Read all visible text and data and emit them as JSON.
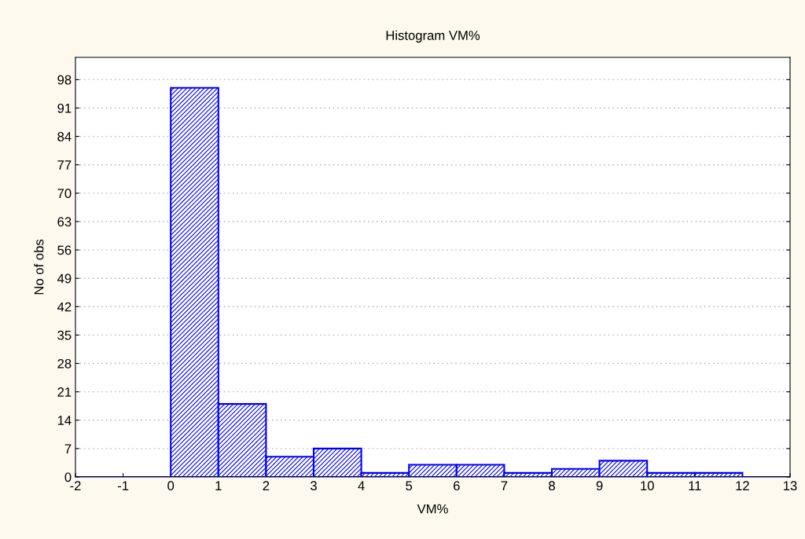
{
  "chart_data": {
    "type": "histogram",
    "title": "Histogram VM%",
    "xlabel": "VM%",
    "ylabel": "No of obs",
    "bins": [
      -2,
      -1,
      0,
      1,
      2,
      3,
      4,
      5,
      6,
      7,
      8,
      9,
      10,
      11,
      12,
      13
    ],
    "values": [
      0,
      0,
      96,
      18,
      5,
      7,
      1,
      3,
      3,
      1,
      2,
      4,
      1,
      1,
      0
    ],
    "color": "#0000ff",
    "xlim": [
      -2,
      13
    ],
    "xticks": [
      -2,
      -1,
      0,
      1,
      2,
      3,
      4,
      5,
      6,
      7,
      8,
      9,
      10,
      11,
      12,
      13
    ],
    "ylim": [
      0,
      103.5
    ],
    "yticks": [
      0,
      7,
      14,
      21,
      28,
      35,
      42,
      49,
      56,
      63,
      70,
      77,
      84,
      91,
      98
    ],
    "grid": "y"
  }
}
